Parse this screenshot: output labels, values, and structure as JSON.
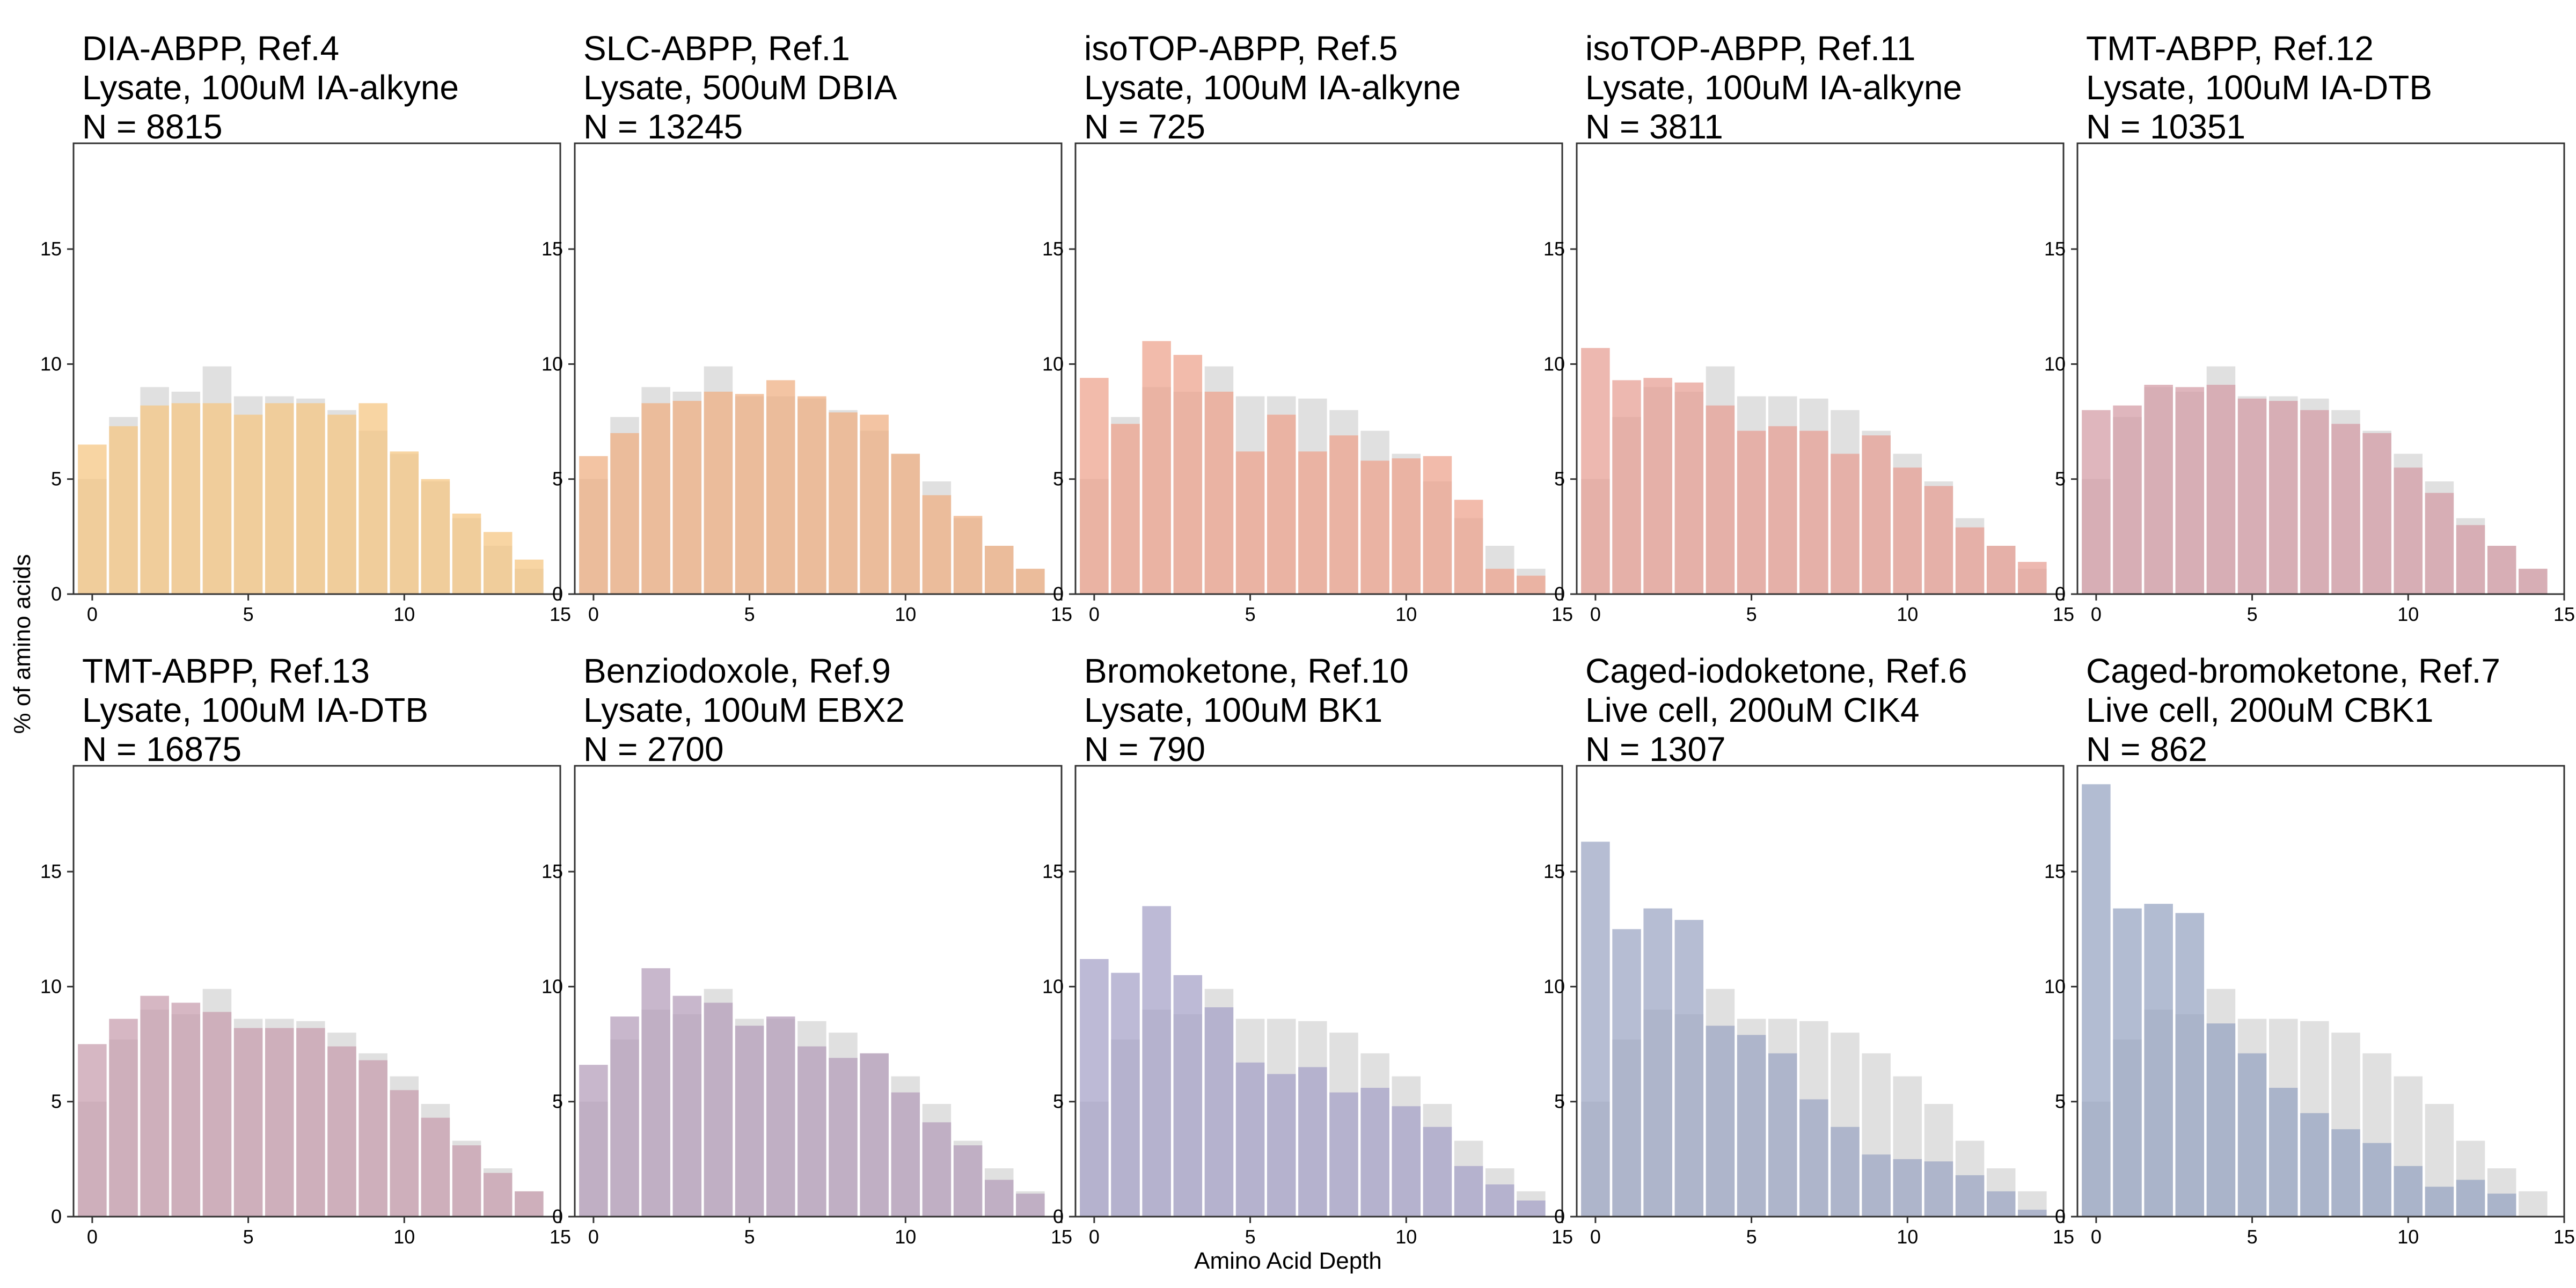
{
  "figure": {
    "ylabel": "% of amino acids",
    "xlabel": "Amino Acid Depth",
    "background_color": "#e0e0e0"
  },
  "chart_data": [
    {
      "type": "bar",
      "title": [
        "DIA-ABPP, Ref.4",
        "Lysate, 100uM IA-alkyne",
        "N = 8815"
      ],
      "color": "#f5c57f",
      "x": [
        0,
        1,
        2,
        3,
        4,
        5,
        6,
        7,
        8,
        9,
        10,
        11,
        12,
        13,
        14
      ],
      "values": [
        6.5,
        7.3,
        8.2,
        8.3,
        8.3,
        7.8,
        8.3,
        8.3,
        7.8,
        8.3,
        6.2,
        5.0,
        3.5,
        2.7,
        1.5
      ],
      "background_values": [
        5.0,
        7.7,
        9.0,
        8.8,
        9.9,
        8.6,
        8.6,
        8.5,
        8.0,
        7.1,
        6.1,
        4.9,
        3.3,
        2.1,
        1.1
      ],
      "xlim": [
        -0.6,
        15
      ],
      "ylim": [
        0,
        19.6
      ],
      "xticks": [
        0,
        5,
        10,
        15
      ],
      "yticks": [
        0,
        5,
        10,
        15
      ]
    },
    {
      "type": "bar",
      "title": [
        "SLC-ABPP, Ref.1",
        "Lysate, 500uM DBIA",
        "N = 13245"
      ],
      "color": "#efad80",
      "x": [
        0,
        1,
        2,
        3,
        4,
        5,
        6,
        7,
        8,
        9,
        10,
        11,
        12,
        13,
        14
      ],
      "values": [
        6.0,
        7.0,
        8.3,
        8.4,
        8.8,
        8.7,
        9.3,
        8.6,
        7.9,
        7.8,
        6.1,
        4.3,
        3.4,
        2.1,
        1.1
      ],
      "background_values": [
        5.0,
        7.7,
        9.0,
        8.8,
        9.9,
        8.6,
        8.6,
        8.5,
        8.0,
        7.1,
        6.1,
        4.9,
        3.3,
        2.1,
        1.1
      ],
      "xlim": [
        -0.6,
        15
      ],
      "ylim": [
        0,
        19.6
      ],
      "xticks": [
        0,
        5,
        10,
        15
      ],
      "yticks": [
        0,
        5,
        10,
        15
      ]
    },
    {
      "type": "bar",
      "title": [
        "isoTOP-ABPP, Ref.5",
        "Lysate, 100uM IA-alkyne",
        "N = 725"
      ],
      "color": "#eda18a",
      "x": [
        0,
        1,
        2,
        3,
        4,
        5,
        6,
        7,
        8,
        9,
        10,
        11,
        12,
        13,
        14
      ],
      "values": [
        9.4,
        7.4,
        11.0,
        10.4,
        8.8,
        6.2,
        7.8,
        6.2,
        6.9,
        5.8,
        5.9,
        6.0,
        4.1,
        1.1,
        0.8
      ],
      "background_values": [
        5.0,
        7.7,
        9.0,
        8.8,
        9.9,
        8.6,
        8.6,
        8.5,
        8.0,
        7.1,
        6.1,
        4.9,
        3.3,
        2.1,
        1.1
      ],
      "xlim": [
        -0.6,
        15
      ],
      "ylim": [
        0,
        19.6
      ],
      "xticks": [
        0,
        5,
        10,
        15
      ],
      "yticks": [
        0,
        5,
        10,
        15
      ]
    },
    {
      "type": "bar",
      "title": [
        "isoTOP-ABPP, Ref.11",
        "Lysate, 100uM IA-alkyne",
        "N = 3811"
      ],
      "color": "#e69c92",
      "x": [
        0,
        1,
        2,
        3,
        4,
        5,
        6,
        7,
        8,
        9,
        10,
        11,
        12,
        13,
        14
      ],
      "values": [
        10.7,
        9.3,
        9.4,
        9.2,
        8.2,
        7.1,
        7.3,
        7.1,
        6.1,
        6.9,
        5.5,
        4.7,
        2.9,
        2.1,
        1.4
      ],
      "background_values": [
        5.0,
        7.7,
        9.0,
        8.8,
        9.9,
        8.6,
        8.6,
        8.5,
        8.0,
        7.1,
        6.1,
        4.9,
        3.3,
        2.1,
        1.1
      ],
      "xlim": [
        -0.6,
        15
      ],
      "ylim": [
        0,
        19.6
      ],
      "xticks": [
        0,
        5,
        10,
        15
      ],
      "yticks": [
        0,
        5,
        10,
        15
      ]
    },
    {
      "type": "bar",
      "title": [
        "TMT-ABPP, Ref.12",
        "Lysate, 100uM IA-DTB",
        "N = 10351"
      ],
      "color": "#d39aa4",
      "x": [
        0,
        1,
        2,
        3,
        4,
        5,
        6,
        7,
        8,
        9,
        10,
        11,
        12,
        13,
        14
      ],
      "values": [
        8.0,
        8.2,
        9.1,
        9.0,
        9.1,
        8.5,
        8.4,
        8.0,
        7.4,
        7.0,
        5.5,
        4.4,
        3.0,
        2.1,
        1.1
      ],
      "background_values": [
        5.0,
        7.7,
        9.0,
        8.8,
        9.9,
        8.6,
        8.6,
        8.5,
        8.0,
        7.1,
        6.1,
        4.9,
        3.3,
        2.1,
        1.1
      ],
      "xlim": [
        -0.6,
        15
      ],
      "ylim": [
        0,
        19.6
      ],
      "xticks": [
        0,
        5,
        10,
        15
      ],
      "yticks": [
        0,
        5,
        10,
        15
      ]
    },
    {
      "type": "bar",
      "title": [
        "TMT-ABPP, Ref.13",
        "Lysate, 100uM IA-DTB",
        "N = 16875"
      ],
      "color": "#c69bac",
      "x": [
        0,
        1,
        2,
        3,
        4,
        5,
        6,
        7,
        8,
        9,
        10,
        11,
        12,
        13,
        14
      ],
      "values": [
        7.5,
        8.6,
        9.6,
        9.3,
        8.9,
        8.2,
        8.2,
        8.2,
        7.4,
        6.8,
        5.5,
        4.3,
        3.1,
        1.9,
        1.1
      ],
      "background_values": [
        5.0,
        7.7,
        9.0,
        8.8,
        9.9,
        8.6,
        8.6,
        8.5,
        8.0,
        7.1,
        6.1,
        4.9,
        3.3,
        2.1,
        1.1
      ],
      "xlim": [
        -0.6,
        15
      ],
      "ylim": [
        0,
        19.6
      ],
      "xticks": [
        0,
        5,
        10,
        15
      ],
      "yticks": [
        0,
        5,
        10,
        15
      ]
    },
    {
      "type": "bar",
      "title": [
        "Benziodoxole, Ref.9",
        "Lysate, 100uM EBX2",
        "N = 2700"
      ],
      "color": "#b39bb8",
      "x": [
        0,
        1,
        2,
        3,
        4,
        5,
        6,
        7,
        8,
        9,
        10,
        11,
        12,
        13,
        14
      ],
      "values": [
        6.6,
        8.7,
        10.8,
        9.6,
        9.3,
        8.3,
        8.7,
        7.4,
        6.9,
        7.1,
        5.4,
        4.1,
        3.1,
        1.6,
        1.0
      ],
      "background_values": [
        5.0,
        7.7,
        9.0,
        8.8,
        9.9,
        8.6,
        8.6,
        8.5,
        8.0,
        7.1,
        6.1,
        4.9,
        3.3,
        2.1,
        1.1
      ],
      "xlim": [
        -0.6,
        15
      ],
      "ylim": [
        0,
        19.6
      ],
      "xticks": [
        0,
        5,
        10,
        15
      ],
      "yticks": [
        0,
        5,
        10,
        15
      ]
    },
    {
      "type": "bar",
      "title": [
        "Bromoketone, Ref.10",
        "Lysate, 100uM BK1",
        "N = 790"
      ],
      "color": "#a49fc6",
      "x": [
        0,
        1,
        2,
        3,
        4,
        5,
        6,
        7,
        8,
        9,
        10,
        11,
        12,
        13,
        14
      ],
      "values": [
        11.2,
        10.6,
        13.5,
        10.5,
        9.1,
        6.7,
        6.2,
        6.5,
        5.4,
        5.6,
        4.8,
        3.9,
        2.2,
        1.4,
        0.7
      ],
      "background_values": [
        5.0,
        7.7,
        9.0,
        8.8,
        9.9,
        8.6,
        8.6,
        8.5,
        8.0,
        7.1,
        6.1,
        4.9,
        3.3,
        2.1,
        1.1
      ],
      "xlim": [
        -0.6,
        15
      ],
      "ylim": [
        0,
        19.6
      ],
      "xticks": [
        0,
        5,
        10,
        15
      ],
      "yticks": [
        0,
        5,
        10,
        15
      ]
    },
    {
      "type": "bar",
      "title": [
        "Caged-iodoketone, Ref.6",
        "Live cell, 200uM CIK4",
        "N = 1307"
      ],
      "color": "#9aa3c2",
      "x": [
        0,
        1,
        2,
        3,
        4,
        5,
        6,
        7,
        8,
        9,
        10,
        11,
        12,
        13,
        14
      ],
      "values": [
        16.3,
        12.5,
        13.4,
        12.9,
        8.3,
        7.9,
        7.1,
        5.1,
        3.9,
        2.7,
        2.5,
        2.4,
        1.8,
        1.1,
        0.3
      ],
      "background_values": [
        5.0,
        7.7,
        9.0,
        8.8,
        9.9,
        8.6,
        8.6,
        8.5,
        8.0,
        7.1,
        6.1,
        4.9,
        3.3,
        2.1,
        1.1
      ],
      "xlim": [
        -0.6,
        15
      ],
      "ylim": [
        0,
        19.6
      ],
      "xticks": [
        0,
        5,
        10,
        15
      ],
      "yticks": [
        0,
        5,
        10,
        15
      ]
    },
    {
      "type": "bar",
      "title": [
        "Caged-bromoketone, Ref.7",
        "Live cell, 200uM CBK1",
        "N = 862"
      ],
      "color": "#94a2c0",
      "x": [
        0,
        1,
        2,
        3,
        4,
        5,
        6,
        7,
        8,
        9,
        10,
        11,
        12,
        13,
        14
      ],
      "values": [
        18.8,
        13.4,
        13.6,
        13.2,
        8.4,
        7.1,
        5.6,
        4.5,
        3.8,
        3.2,
        2.2,
        1.3,
        1.6,
        1.0,
        0.0
      ],
      "background_values": [
        5.0,
        7.7,
        9.0,
        8.8,
        9.9,
        8.6,
        8.6,
        8.5,
        8.0,
        7.1,
        6.1,
        4.9,
        3.3,
        2.1,
        1.1
      ],
      "xlim": [
        -0.6,
        15
      ],
      "ylim": [
        0,
        19.6
      ],
      "xticks": [
        0,
        5,
        10,
        15
      ],
      "yticks": [
        0,
        5,
        10,
        15
      ]
    }
  ]
}
